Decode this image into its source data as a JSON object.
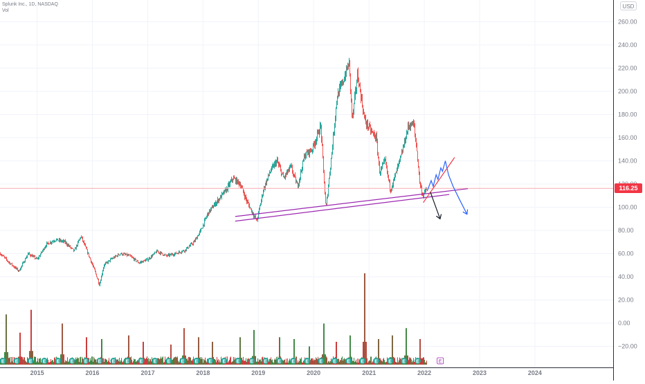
{
  "legend": {
    "symbol_line": "Splunk Inc., 1D, NASDAQ",
    "vol_label": "Vol"
  },
  "currency_label": "USD",
  "last_price_label": "116.25",
  "colors": {
    "up": "#26a69a",
    "down": "#ef5350",
    "vol_up": "#2e7d32",
    "vol_down": "#c62828",
    "grid": "#f0f3fa",
    "axis_text": "#787b86",
    "channel": "#9c27b0",
    "wedge_red": "#f23645",
    "projection_blue": "#2962ff",
    "arrow_black": "#131722",
    "price_line": "#f7a9b0",
    "earnings_badge": "#26a69a"
  },
  "chart_data": {
    "type": "candlestick",
    "title": "Splunk Inc., 1D, NASDAQ",
    "x_range": [
      "2014-05-01",
      "2025-06-01"
    ],
    "y_range": [
      -37,
      268
    ],
    "x_ticks": [
      "2015",
      "2016",
      "2017",
      "2018",
      "2019",
      "2020",
      "2021",
      "2022",
      "2023",
      "2024"
    ],
    "y_ticks": [
      -20,
      0,
      20,
      40,
      60,
      80,
      100,
      120,
      140,
      160,
      180,
      200,
      220,
      240,
      260
    ],
    "y_tick_labels": [
      "−20.00",
      "0.00",
      "20.00",
      "40.00",
      "60.00",
      "80.00",
      "100.00",
      "120.00",
      "140.00",
      "160.00",
      "180.00",
      "200.00",
      "220.00",
      "240.00",
      "260.00"
    ],
    "last_price": 116.25,
    "price_series_last_date": "2022-01-15",
    "price_path": [
      [
        "2014-05-01",
        60
      ],
      [
        "2014-07-01",
        52
      ],
      [
        "2014-09-01",
        45
      ],
      [
        "2014-11-01",
        60
      ],
      [
        "2015-01-01",
        55
      ],
      [
        "2015-03-01",
        68
      ],
      [
        "2015-05-01",
        72
      ],
      [
        "2015-07-01",
        70
      ],
      [
        "2015-09-01",
        62
      ],
      [
        "2015-10-15",
        75
      ],
      [
        "2015-12-01",
        60
      ],
      [
        "2016-01-15",
        45
      ],
      [
        "2016-02-15",
        33
      ],
      [
        "2016-03-15",
        50
      ],
      [
        "2016-05-01",
        55
      ],
      [
        "2016-07-01",
        60
      ],
      [
        "2016-09-01",
        58
      ],
      [
        "2016-11-01",
        52
      ],
      [
        "2017-01-01",
        55
      ],
      [
        "2017-03-01",
        62
      ],
      [
        "2017-05-01",
        58
      ],
      [
        "2017-07-01",
        60
      ],
      [
        "2017-09-01",
        63
      ],
      [
        "2017-11-01",
        70
      ],
      [
        "2017-12-15",
        80
      ],
      [
        "2018-02-01",
        95
      ],
      [
        "2018-04-01",
        105
      ],
      [
        "2018-06-01",
        115
      ],
      [
        "2018-07-15",
        125
      ],
      [
        "2018-09-01",
        120
      ],
      [
        "2018-10-15",
        105
      ],
      [
        "2018-12-20",
        88
      ],
      [
        "2019-02-01",
        115
      ],
      [
        "2019-03-15",
        130
      ],
      [
        "2019-05-01",
        140
      ],
      [
        "2019-06-15",
        125
      ],
      [
        "2019-08-01",
        135
      ],
      [
        "2019-09-15",
        118
      ],
      [
        "2019-11-01",
        145
      ],
      [
        "2019-12-20",
        150
      ],
      [
        "2020-02-15",
        170
      ],
      [
        "2020-03-20",
        98
      ],
      [
        "2020-04-30",
        150
      ],
      [
        "2020-06-01",
        195
      ],
      [
        "2020-07-15",
        210
      ],
      [
        "2020-08-20",
        225
      ],
      [
        "2020-09-10",
        175
      ],
      [
        "2020-10-15",
        215
      ],
      [
        "2020-12-01",
        175
      ],
      [
        "2021-01-15",
        165
      ],
      [
        "2021-02-15",
        160
      ],
      [
        "2021-03-10",
        130
      ],
      [
        "2021-04-15",
        140
      ],
      [
        "2021-05-20",
        115
      ],
      [
        "2021-06-15",
        125
      ],
      [
        "2021-08-01",
        145
      ],
      [
        "2021-09-15",
        170
      ],
      [
        "2021-10-20",
        172
      ],
      [
        "2021-11-10",
        150
      ],
      [
        "2021-12-01",
        120
      ],
      [
        "2021-12-20",
        110
      ],
      [
        "2022-01-15",
        116
      ]
    ],
    "volume": {
      "scale_note": "relative volume bars drawn at bottom of pane",
      "spikes": [
        [
          "2014-06-10",
          0.55
        ],
        [
          "2014-09-10",
          0.35
        ],
        [
          "2014-11-20",
          0.6
        ],
        [
          "2015-06-15",
          0.45
        ],
        [
          "2015-11-20",
          0.3
        ],
        [
          "2016-03-01",
          0.28
        ],
        [
          "2016-08-25",
          0.32
        ],
        [
          "2016-12-01",
          0.25
        ],
        [
          "2017-06-01",
          0.22
        ],
        [
          "2017-08-25",
          0.4
        ],
        [
          "2017-12-01",
          0.3
        ],
        [
          "2018-03-01",
          0.25
        ],
        [
          "2018-08-30",
          0.3
        ],
        [
          "2018-11-30",
          0.38
        ],
        [
          "2019-05-20",
          0.3
        ],
        [
          "2019-08-22",
          0.28
        ],
        [
          "2019-12-01",
          0.2
        ],
        [
          "2020-03-05",
          0.45
        ],
        [
          "2020-05-28",
          0.25
        ],
        [
          "2020-08-27",
          0.32
        ],
        [
          "2020-12-03",
          1.0
        ],
        [
          "2021-03-04",
          0.28
        ],
        [
          "2021-06-03",
          0.32
        ],
        [
          "2021-09-02",
          0.4
        ],
        [
          "2021-12-02",
          0.28
        ]
      ]
    },
    "drawings": [
      {
        "kind": "channel_lower",
        "from": [
          "2018-08-01",
          88
        ],
        "to": [
          "2022-06-15",
          111
        ],
        "color": "channel"
      },
      {
        "kind": "channel_upper",
        "from": [
          "2018-08-01",
          92
        ],
        "to": [
          "2022-10-15",
          116
        ],
        "color": "channel"
      },
      {
        "kind": "wedge_support",
        "from": [
          "2021-12-25",
          104
        ],
        "to": [
          "2022-07-20",
          143
        ],
        "color": "wedge_red"
      },
      {
        "kind": "projection_zigzag",
        "points": [
          [
            "2022-01-20",
            114
          ],
          [
            "2022-02-15",
            123
          ],
          [
            "2022-03-01",
            118
          ],
          [
            "2022-03-20",
            128
          ],
          [
            "2022-04-01",
            124
          ],
          [
            "2022-04-20",
            134
          ],
          [
            "2022-05-01",
            131
          ],
          [
            "2022-05-20",
            140
          ],
          [
            "2022-06-10",
            128
          ],
          [
            "2022-07-10",
            118
          ],
          [
            "2022-08-20",
            107
          ],
          [
            "2022-10-10",
            94
          ]
        ],
        "color": "projection_blue",
        "arrow": true
      },
      {
        "kind": "projection_black",
        "points": [
          [
            "2022-02-10",
            113
          ],
          [
            "2022-04-15",
            90
          ]
        ],
        "color": "arrow_black",
        "arrow": true
      }
    ],
    "earnings_markers_start": "2014-05-20",
    "earnings_markers_end": "2022-01-15",
    "earnings_marker_label": "E"
  }
}
